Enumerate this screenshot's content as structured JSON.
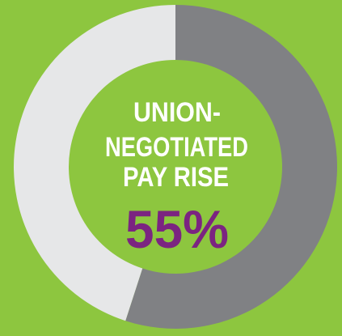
{
  "chart_data": {
    "type": "donut",
    "title": [
      "UNION-",
      "NEGOTIATED",
      "PAY RISE"
    ],
    "values": [
      55,
      45
    ],
    "value_labels": [
      "55%",
      null
    ],
    "colors": [
      "#808184",
      "#e6e7e8"
    ],
    "background": "#8dc63f",
    "label_color": "#7b2481"
  }
}
